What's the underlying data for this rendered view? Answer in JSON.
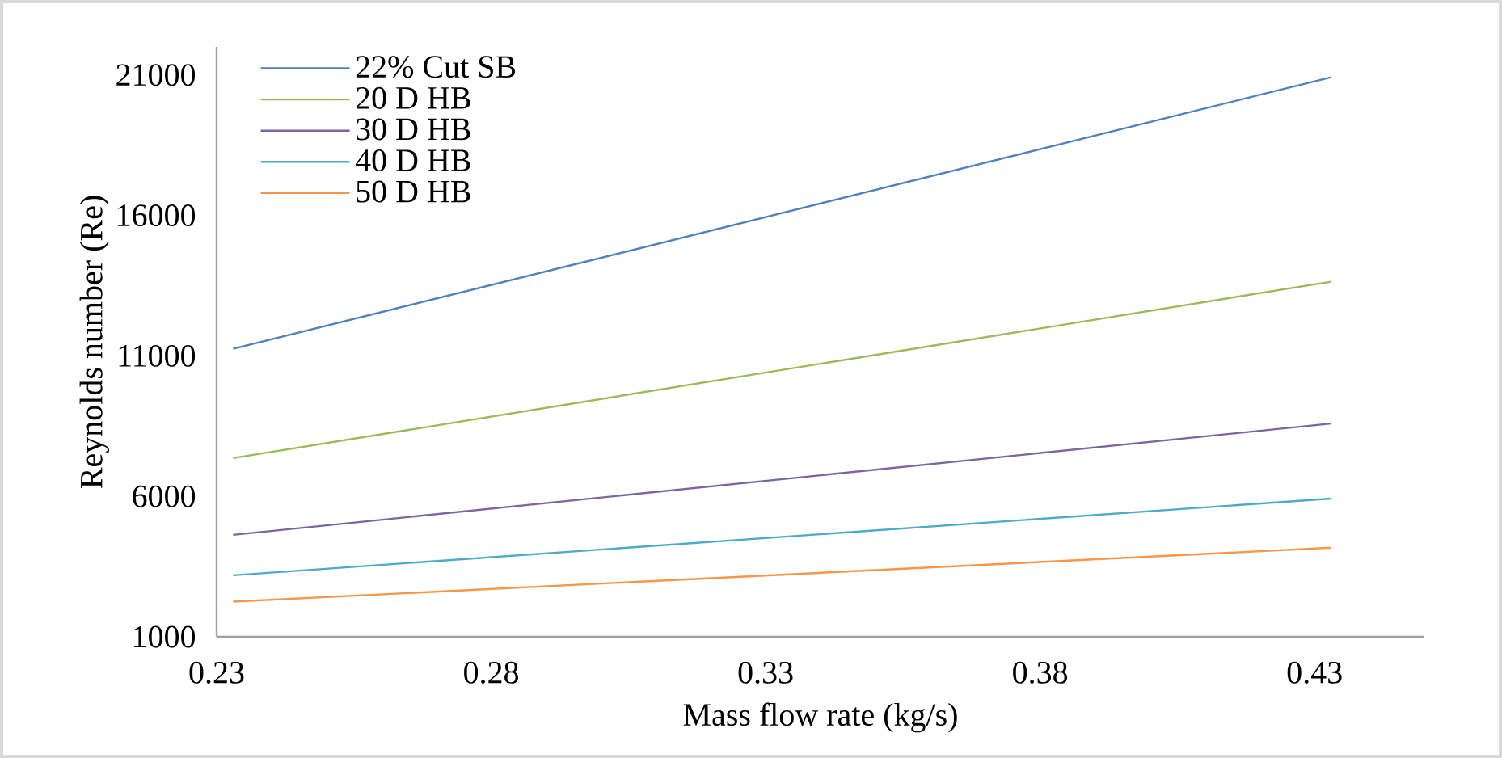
{
  "chart_data": {
    "type": "line",
    "xlabel": "Mass flow rate (kg/s)",
    "ylabel": "Reynolds number (Re)",
    "x": [
      0.233,
      0.433
    ],
    "xlim": [
      0.23,
      0.45
    ],
    "xticks": [
      0.23,
      0.28,
      0.33,
      0.38,
      0.43
    ],
    "ylim": [
      1000,
      22000
    ],
    "yticks": [
      1000,
      6000,
      11000,
      16000,
      21000
    ],
    "grid": false,
    "legend": "top left",
    "marker": "none",
    "line_style": "solid",
    "series": [
      {
        "name": "22% Cut SB",
        "color": "#4f81bd",
        "values": [
          11250,
          20920
        ]
      },
      {
        "name": "20 D HB",
        "color": "#9bbb59",
        "values": [
          7360,
          13640
        ]
      },
      {
        "name": "30 D HB",
        "color": "#8064a2",
        "values": [
          4630,
          8590
        ]
      },
      {
        "name": "40 D HB",
        "color": "#4bacc6",
        "values": [
          3190,
          5920
        ]
      },
      {
        "name": "50 D HB",
        "color": "#f79646",
        "values": [
          2250,
          4170
        ]
      }
    ]
  }
}
